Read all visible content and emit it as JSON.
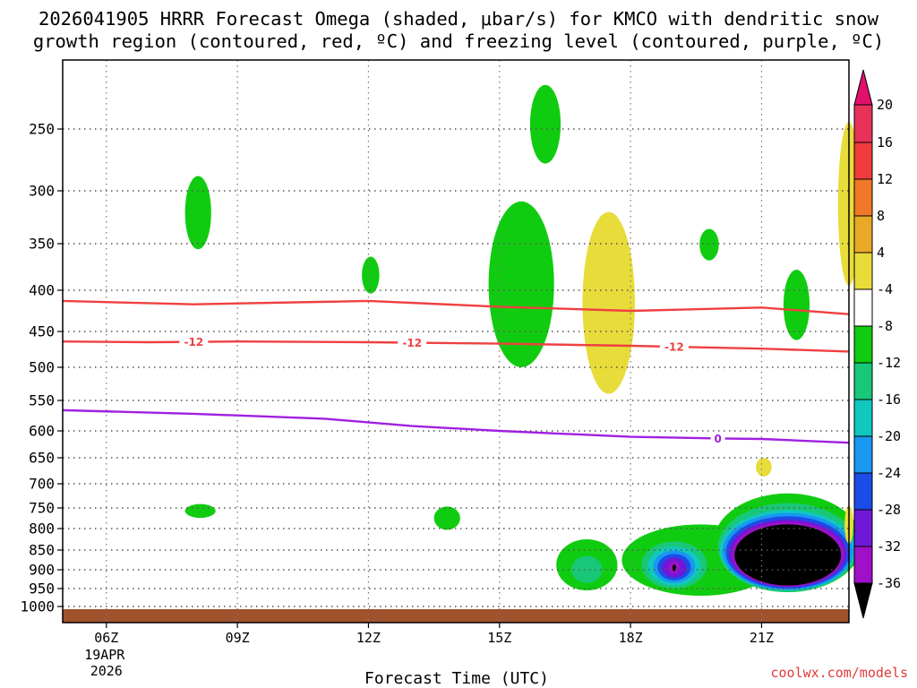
{
  "chart_data": {
    "type": "heatmap",
    "title_line1": "2026041905 HRRR Forecast Omega (shaded, μbar/s) for KMCO with dendritic snow",
    "title_line2": "growth region (contoured, red, ºC) and freezing level (contoured, purple, ºC)",
    "xlabel": "Forecast Time (UTC)",
    "credit": "coolwx.com/models",
    "x_ticks": [
      {
        "hour": 6,
        "label": "06Z",
        "date": "19APR",
        "year": "2026"
      },
      {
        "hour": 9,
        "label": "09Z"
      },
      {
        "hour": 12,
        "label": "12Z"
      },
      {
        "hour": 15,
        "label": "15Z"
      },
      {
        "hour": 18,
        "label": "18Z"
      },
      {
        "hour": 21,
        "label": "21Z"
      }
    ],
    "xlim": [
      5.0,
      23.0
    ],
    "y_ticks": [
      250,
      300,
      350,
      400,
      450,
      500,
      550,
      600,
      650,
      700,
      750,
      800,
      850,
      900,
      950,
      1000
    ],
    "ylim": [
      200,
      1015
    ],
    "grid": true,
    "colorbar": {
      "levels": [
        20,
        16,
        12,
        8,
        4,
        -4,
        -8,
        -12,
        -16,
        -20,
        -24,
        -28,
        -32,
        -36
      ],
      "colors": [
        "#e8325a",
        "#f03c3c",
        "#f07828",
        "#e8a828",
        "#e8dc3a",
        "#ffffff",
        "#10cc10",
        "#18c878",
        "#10c8c0",
        "#1898f0",
        "#1c4ce8",
        "#7018d8",
        "#a010c8",
        "#a0a0a0",
        "#000000"
      ],
      "top_color": "#e0106c"
    },
    "contours": [
      {
        "name": "dendritic snow growth region",
        "color": "#f04040",
        "label": "-12",
        "lines": [
          {
            "hour": [
              5.0,
              8,
              11,
              12,
              15,
              18,
              21,
              23
            ],
            "p": [
              413,
              417,
              414,
              413,
              420,
              425,
              421,
              429
            ],
            "labels_at": []
          },
          {
            "hour": [
              5.0,
              7,
              9,
              12,
              15,
              18,
              21,
              23
            ],
            "p": [
              464,
              465,
              464,
              465,
              467,
              470,
              474,
              478
            ],
            "labels_at": [
              8,
              13,
              19
            ]
          }
        ]
      },
      {
        "name": "freezing level",
        "color": "#a020e0",
        "label": "0",
        "lines": [
          {
            "hour": [
              5.0,
              8,
              11,
              13,
              15,
              18,
              20,
              21,
              23
            ],
            "p": [
              566,
              572,
              580,
              592,
              600,
              611,
              614,
              615,
              622
            ],
            "labels_at": [
              20
            ]
          }
        ]
      }
    ],
    "omega_features": [
      {
        "category": "-8",
        "center_hour": 8.1,
        "center_p": 322,
        "hw": 0.3,
        "dp": 34
      },
      {
        "category": "-8",
        "center_hour": 12.05,
        "center_p": 384,
        "hw": 0.2,
        "dp": 20
      },
      {
        "category": "-8",
        "center_hour": 15.5,
        "center_p": 405,
        "hw": 0.75,
        "dp": 95
      },
      {
        "category": "-8",
        "center_hour": 16.05,
        "center_p": 248,
        "hw": 0.35,
        "dp": 30
      },
      {
        "category": "4",
        "center_hour": 17.5,
        "center_p": 430,
        "hw": 0.6,
        "dp": 110
      },
      {
        "category": "-8",
        "center_hour": 19.8,
        "center_p": 352,
        "hw": 0.22,
        "dp": 16
      },
      {
        "category": "-8",
        "center_hour": 21.8,
        "center_p": 420,
        "hw": 0.3,
        "dp": 42
      },
      {
        "category": "4",
        "center_hour": 23.0,
        "center_p": 320,
        "hw": 0.25,
        "dp": 75
      },
      {
        "category": "4",
        "center_hour": 21.05,
        "center_p": 668,
        "hw": 0.18,
        "dp": 18
      },
      {
        "category": "-8",
        "center_hour": 8.15,
        "center_p": 758,
        "hw": 0.35,
        "dp": 16
      },
      {
        "category": "-8",
        "center_hour": 13.8,
        "center_p": 775,
        "hw": 0.3,
        "dp": 28
      },
      {
        "category": "-8",
        "center_hour": 17.0,
        "center_p": 890,
        "hw": 0.7,
        "dp": 65
      },
      {
        "category": "-12",
        "center_hour": 17.0,
        "center_p": 900,
        "hw": 0.35,
        "dp": 35
      },
      {
        "category": "-8",
        "center_hour": 19.6,
        "center_p": 880,
        "hw": 1.8,
        "dp": 90
      },
      {
        "category": "-8",
        "center_hour": 21.6,
        "center_p": 840,
        "hw": 1.7,
        "dp": 120
      },
      {
        "category": "-12",
        "center_hour": 21.6,
        "center_p": 850,
        "hw": 1.6,
        "dp": 110
      },
      {
        "category": "-16",
        "center_hour": 21.6,
        "center_p": 855,
        "hw": 1.55,
        "dp": 100
      },
      {
        "category": "-20",
        "center_hour": 21.6,
        "center_p": 858,
        "hw": 1.5,
        "dp": 96
      },
      {
        "category": "-24",
        "center_hour": 21.6,
        "center_p": 860,
        "hw": 1.42,
        "dp": 90
      },
      {
        "category": "-28",
        "center_hour": 21.6,
        "center_p": 862,
        "hw": 1.35,
        "dp": 84
      },
      {
        "category": "-32",
        "center_hour": 21.6,
        "center_p": 864,
        "hw": 1.28,
        "dp": 80
      },
      {
        "category": "-36",
        "center_hour": 21.6,
        "center_p": 866,
        "hw": 1.22,
        "dp": 76
      },
      {
        "category": "-12",
        "center_hour": 19.0,
        "center_p": 890,
        "hw": 0.75,
        "dp": 60
      },
      {
        "category": "-16",
        "center_hour": 19.0,
        "center_p": 892,
        "hw": 0.6,
        "dp": 50
      },
      {
        "category": "-20",
        "center_hour": 19.0,
        "center_p": 893,
        "hw": 0.48,
        "dp": 42
      },
      {
        "category": "-24",
        "center_hour": 19.0,
        "center_p": 894,
        "hw": 0.38,
        "dp": 34
      },
      {
        "category": "-28",
        "center_hour": 19.0,
        "center_p": 895,
        "hw": 0.28,
        "dp": 26
      },
      {
        "category": "-32",
        "center_hour": 19.0,
        "center_p": 895,
        "hw": 0.13,
        "dp": 16
      },
      {
        "category": "-36",
        "center_hour": 19.0,
        "center_p": 895,
        "hw": 0.04,
        "dp": 9
      },
      {
        "category": "4",
        "center_hour": 23.0,
        "center_p": 790,
        "hw": 0.1,
        "dp": 45
      }
    ],
    "terrain": {
      "color": "#a0522d",
      "p_top": 1000
    }
  }
}
